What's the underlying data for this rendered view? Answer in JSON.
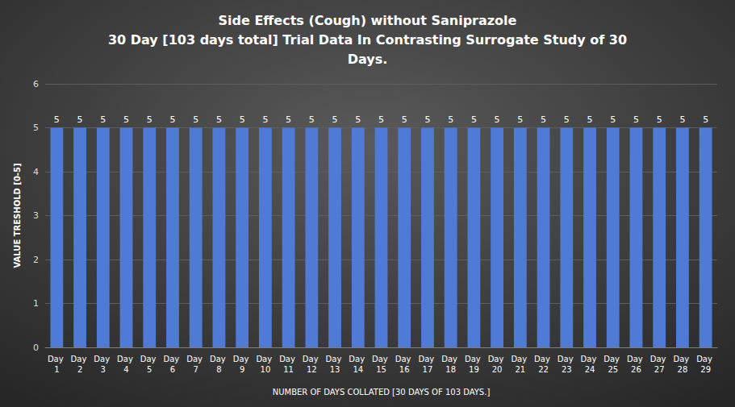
{
  "chart_data": {
    "type": "bar",
    "title": "Side Effects (Cough) without Saniprazole\n30 Day [103 days total] Trial Data In Contrasting Surrogate Study of 30\nDays.",
    "x_label": "NUMBER OF DAYS COLLATED [30 DAYS OF 103 DAYS.]",
    "y_label": "VALUE TRESHOLD [0-5]",
    "categories": [
      "Day 1",
      "Day 2",
      "Day 3",
      "Day 4",
      "Day 5",
      "Day 6",
      "Day 7",
      "Day 8",
      "Day 9",
      "Day 10",
      "Day 11",
      "Day 12",
      "Day 13",
      "Day 14",
      "Day 15",
      "Day 16",
      "Day 17",
      "Day 18",
      "Day 19",
      "Day 20",
      "Day 21",
      "Day 22",
      "Day 23",
      "Day 24",
      "Day 25",
      "Day 26",
      "Day 27",
      "Day 28",
      "Day 29"
    ],
    "values": [
      5,
      5,
      5,
      5,
      5,
      5,
      5,
      5,
      5,
      5,
      5,
      5,
      5,
      5,
      5,
      5,
      5,
      5,
      5,
      5,
      5,
      5,
      5,
      5,
      5,
      5,
      5,
      5,
      5
    ],
    "color": "#4f7bd6",
    "ylim": [
      0,
      6
    ],
    "yticks": [
      0,
      1,
      2,
      3,
      4,
      5,
      6
    ],
    "grid": true,
    "data_labels": true
  }
}
